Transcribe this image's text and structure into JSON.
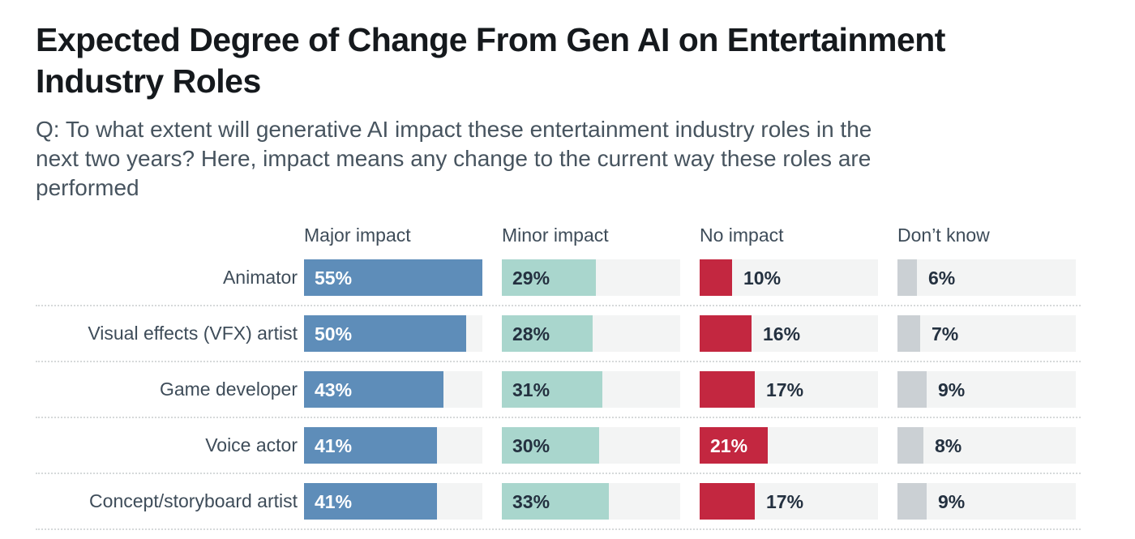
{
  "header": {
    "title": "Expected Degree of Change From Gen AI on Entertainment Industry Roles",
    "subtitle_lines": [
      "Q: To what extent will generative AI impact these entertainment industry roles in the",
      "next two years? Here, impact means any change to the current way these roles are",
      "performed"
    ]
  },
  "chart_data": {
    "type": "bar",
    "orientation": "horizontal-grouped",
    "title": "Expected Degree of Change From Gen AI on Entertainment Industry Roles",
    "subtitle": "Q: To what extent will generative AI impact these entertainment industry roles in the next two years? Here, impact means any change to the current way these roles are performed",
    "categories": [
      "Animator",
      "Visual effects (VFX) artist",
      "Game developer",
      "Voice actor",
      "Concept/storyboard artist"
    ],
    "series": [
      {
        "name": "Major impact",
        "color": "#5e8db9",
        "inside_label_color": "#ffffff",
        "values": [
          55,
          50,
          43,
          41,
          41
        ]
      },
      {
        "name": "Minor impact",
        "color": "#a9d6cd",
        "inside_label_color": "#243140",
        "values": [
          29,
          28,
          31,
          30,
          33
        ]
      },
      {
        "name": "No impact",
        "color": "#c32740",
        "inside_label_color": "#ffffff",
        "values": [
          10,
          16,
          17,
          21,
          17
        ]
      },
      {
        "name": "Don’t know",
        "color": "#cbd0d4",
        "inside_label_color": "#243140",
        "values": [
          6,
          7,
          9,
          8,
          9
        ]
      }
    ],
    "value_suffix": "%",
    "xlim": [
      0,
      55
    ],
    "outside_label_color": "#243140",
    "track_color": "#f3f4f4",
    "grid": "dotted row separators only, no axes",
    "legend_position": "column headers above each bar group",
    "colors": {
      "title_text": "#15191d",
      "subtitle_text": "#47545f",
      "label_text": "#3e4c59",
      "separator": "#d6d9da",
      "background": "#ffffff"
    }
  }
}
